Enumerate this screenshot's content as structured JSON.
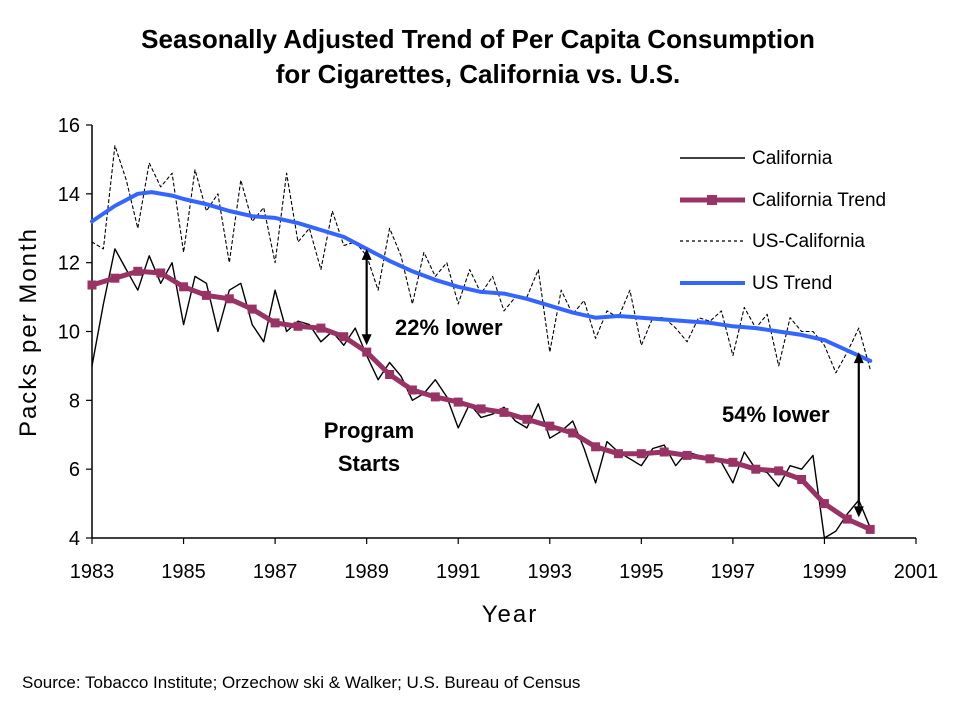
{
  "chart_data": {
    "type": "line",
    "title": [
      "Seasonally Adjusted Trend of Per Capita Consumption",
      "for Cigarettes, California vs. U.S."
    ],
    "xlabel": "Year",
    "ylabel": "Packs per Month",
    "xlim": [
      1983,
      2001
    ],
    "ylim": [
      4,
      16
    ],
    "x_ticks": [
      "1983",
      "1985",
      "1987",
      "1989",
      "1991",
      "1993",
      "1995",
      "1997",
      "1999",
      "2001"
    ],
    "y_ticks": [
      "4",
      "6",
      "8",
      "10",
      "12",
      "14",
      "16"
    ],
    "grid": false,
    "legend_position": "top-right",
    "series": [
      {
        "name": "California",
        "style": "solid-thin",
        "color": "#000000",
        "x": [
          1983.0,
          1983.25,
          1983.5,
          1983.75,
          1984.0,
          1984.25,
          1984.5,
          1984.75,
          1985.0,
          1985.25,
          1985.5,
          1985.75,
          1986.0,
          1986.25,
          1986.5,
          1986.75,
          1987.0,
          1987.25,
          1987.5,
          1987.75,
          1988.0,
          1988.25,
          1988.5,
          1988.75,
          1989.0,
          1989.25,
          1989.5,
          1989.75,
          1990.0,
          1990.25,
          1990.5,
          1990.75,
          1991.0,
          1991.25,
          1991.5,
          1991.75,
          1992.0,
          1992.25,
          1992.5,
          1992.75,
          1993.0,
          1993.25,
          1993.5,
          1993.75,
          1994.0,
          1994.25,
          1994.5,
          1994.75,
          1995.0,
          1995.25,
          1995.5,
          1995.75,
          1996.0,
          1996.25,
          1996.5,
          1996.75,
          1997.0,
          1997.25,
          1997.5,
          1997.75,
          1998.0,
          1998.25,
          1998.5,
          1998.75,
          1999.0,
          1999.25,
          1999.5,
          1999.75,
          2000.0
        ],
        "values": [
          9.0,
          10.8,
          12.4,
          11.8,
          11.2,
          12.2,
          11.4,
          12.0,
          10.2,
          11.6,
          11.4,
          10.0,
          11.2,
          11.4,
          10.2,
          9.7,
          11.2,
          10.0,
          10.3,
          10.2,
          9.7,
          10.0,
          9.6,
          10.1,
          9.3,
          8.6,
          9.1,
          8.7,
          8.0,
          8.2,
          8.6,
          8.1,
          7.2,
          7.9,
          7.5,
          7.6,
          7.8,
          7.4,
          7.2,
          7.9,
          6.9,
          7.1,
          7.4,
          6.6,
          5.6,
          6.8,
          6.5,
          6.3,
          6.1,
          6.6,
          6.7,
          6.1,
          6.5,
          6.4,
          6.3,
          6.2,
          5.6,
          6.5,
          6.0,
          5.9,
          5.5,
          6.1,
          6.0,
          6.4,
          4.0,
          4.2,
          4.7,
          5.1,
          4.3
        ]
      },
      {
        "name": "California Trend",
        "style": "thick-square-markers",
        "color": "#993366",
        "x": [
          1983.0,
          1983.5,
          1984.0,
          1984.5,
          1985.0,
          1985.5,
          1986.0,
          1986.5,
          1987.0,
          1987.5,
          1988.0,
          1988.5,
          1989.0,
          1989.5,
          1990.0,
          1990.5,
          1991.0,
          1991.5,
          1992.0,
          1992.5,
          1993.0,
          1993.5,
          1994.0,
          1994.5,
          1995.0,
          1995.5,
          1996.0,
          1996.5,
          1997.0,
          1997.5,
          1998.0,
          1998.5,
          1999.0,
          1999.5,
          2000.0
        ],
        "values": [
          11.35,
          11.55,
          11.75,
          11.7,
          11.3,
          11.05,
          10.95,
          10.65,
          10.25,
          10.15,
          10.1,
          9.85,
          9.4,
          8.75,
          8.3,
          8.1,
          7.95,
          7.75,
          7.65,
          7.45,
          7.25,
          7.05,
          6.65,
          6.45,
          6.45,
          6.5,
          6.4,
          6.3,
          6.2,
          6.0,
          5.95,
          5.7,
          5.0,
          4.55,
          4.25
        ]
      },
      {
        "name": "US-California",
        "style": "dotted",
        "color": "#000000",
        "x": [
          1983.0,
          1983.25,
          1983.5,
          1983.75,
          1984.0,
          1984.25,
          1984.5,
          1984.75,
          1985.0,
          1985.25,
          1985.5,
          1985.75,
          1986.0,
          1986.25,
          1986.5,
          1986.75,
          1987.0,
          1987.25,
          1987.5,
          1987.75,
          1988.0,
          1988.25,
          1988.5,
          1988.75,
          1989.0,
          1989.25,
          1989.5,
          1989.75,
          1990.0,
          1990.25,
          1990.5,
          1990.75,
          1991.0,
          1991.25,
          1991.5,
          1991.75,
          1992.0,
          1992.25,
          1992.5,
          1992.75,
          1993.0,
          1993.25,
          1993.5,
          1993.75,
          1994.0,
          1994.25,
          1994.5,
          1994.75,
          1995.0,
          1995.25,
          1995.5,
          1995.75,
          1996.0,
          1996.25,
          1996.5,
          1996.75,
          1997.0,
          1997.25,
          1997.5,
          1997.75,
          1998.0,
          1998.25,
          1998.5,
          1998.75,
          1999.0,
          1999.25,
          1999.5,
          1999.75,
          2000.0
        ],
        "values": [
          12.6,
          12.4,
          15.4,
          14.4,
          13.0,
          14.9,
          14.2,
          14.6,
          12.3,
          14.7,
          13.5,
          14.0,
          12.0,
          14.4,
          13.2,
          13.6,
          12.0,
          14.6,
          12.6,
          13.0,
          11.8,
          13.5,
          12.5,
          12.6,
          12.2,
          11.2,
          13.0,
          12.2,
          10.8,
          12.3,
          11.6,
          12.0,
          10.8,
          11.8,
          11.1,
          11.6,
          10.6,
          11.0,
          11.0,
          11.8,
          9.4,
          11.2,
          10.5,
          10.9,
          9.8,
          10.6,
          10.4,
          11.2,
          9.6,
          10.4,
          10.4,
          10.1,
          9.7,
          10.4,
          10.3,
          10.6,
          9.3,
          10.7,
          10.1,
          10.5,
          9.0,
          10.4,
          10.0,
          10.0,
          9.6,
          8.8,
          9.4,
          10.1,
          8.9
        ]
      },
      {
        "name": "US Trend",
        "style": "thick",
        "color": "#3366ff",
        "x": [
          1983.0,
          1983.5,
          1984.0,
          1984.3,
          1984.75,
          1985.0,
          1985.5,
          1986.0,
          1986.5,
          1987.0,
          1987.5,
          1988.0,
          1988.5,
          1989.0,
          1989.5,
          1990.0,
          1990.5,
          1991.0,
          1991.5,
          1992.0,
          1992.5,
          1993.0,
          1993.5,
          1994.0,
          1994.5,
          1995.0,
          1995.5,
          1996.0,
          1996.5,
          1997.0,
          1997.5,
          1998.0,
          1998.5,
          1999.0,
          1999.5,
          2000.0
        ],
        "values": [
          13.2,
          13.65,
          14.0,
          14.05,
          13.95,
          13.85,
          13.7,
          13.5,
          13.35,
          13.3,
          13.15,
          12.95,
          12.75,
          12.4,
          12.05,
          11.75,
          11.5,
          11.3,
          11.15,
          11.1,
          10.95,
          10.75,
          10.55,
          10.4,
          10.45,
          10.4,
          10.35,
          10.3,
          10.25,
          10.15,
          10.1,
          10.0,
          9.9,
          9.75,
          9.45,
          9.15
        ]
      }
    ],
    "annotations": [
      {
        "text": "22% lower",
        "x": 1989.0,
        "y_top": 12.4,
        "y_bottom": 9.6
      },
      {
        "text": "54% lower",
        "x": 1999.75,
        "y_top": 9.4,
        "y_bottom": 4.6
      },
      {
        "text_lines": [
          "Program",
          "Starts"
        ],
        "x": 1989.0
      }
    ]
  },
  "source_note": "Source:  Tobacco Institute; Orzechow ski & Walker; U.S. Bureau of Census"
}
